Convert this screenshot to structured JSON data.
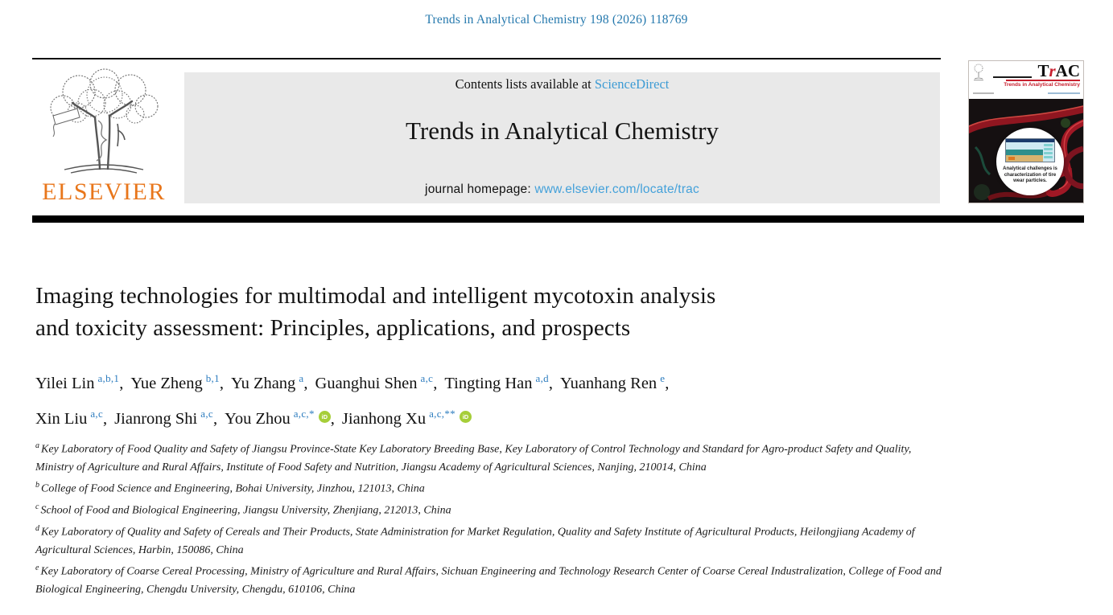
{
  "page": {
    "citation": "Trends in Analytical Chemistry 198 (2026) 118769"
  },
  "header": {
    "contents_prefix": "Contents lists available at ",
    "contents_link": "ScienceDirect",
    "journal_title": "Trends in Analytical Chemistry",
    "homepage_prefix": "journal homepage: ",
    "homepage_link": "www.elsevier.com/locate/trac",
    "publisher_name": "ELSEVIER",
    "cover": {
      "brand_t": "T",
      "brand_r": "r",
      "brand_ac": "AC",
      "subtitle": "Trends in Analytical Chemistry",
      "caption": "Analytical challenges is characterization of tire wear particles."
    }
  },
  "article": {
    "title_line1": "Imaging technologies for multimodal and intelligent mycotoxin analysis",
    "title_line2": "and toxicity assessment: Principles, applications, and prospects",
    "author_lines": [
      [
        {
          "name": "Yilei Lin",
          "sup": "a,b,1",
          "orcid": false,
          "sep": ","
        },
        {
          "name": "Yue Zheng",
          "sup": "b,1",
          "orcid": false,
          "sep": ","
        },
        {
          "name": "Yu Zhang",
          "sup": "a",
          "orcid": false,
          "sep": ","
        },
        {
          "name": "Guanghui Shen",
          "sup": "a,c",
          "orcid": false,
          "sep": ","
        },
        {
          "name": "Tingting Han",
          "sup": "a,d",
          "orcid": false,
          "sep": ","
        },
        {
          "name": "Yuanhang Ren",
          "sup": "e",
          "orcid": false,
          "sep": ","
        }
      ],
      [
        {
          "name": "Xin Liu",
          "sup": "a,c",
          "orcid": false,
          "sep": ","
        },
        {
          "name": "Jianrong Shi",
          "sup": "a,c",
          "orcid": false,
          "sep": ","
        },
        {
          "name": "You Zhou",
          "sup": "a,c,*",
          "orcid": true,
          "sep": ","
        },
        {
          "name": "Jianhong Xu",
          "sup": "a,c,**",
          "orcid": true,
          "sep": ""
        }
      ]
    ],
    "affiliations": [
      {
        "sup": "a",
        "text": "Key Laboratory of Food Quality and Safety of Jiangsu Province-State Key Laboratory Breeding Base, Key Laboratory of Control Technology and Standard for Agro-product Safety and Quality, Ministry of Agriculture and Rural Affairs, Institute of Food Safety and Nutrition, Jiangsu Academy of Agricultural Sciences, Nanjing, 210014, China"
      },
      {
        "sup": "b",
        "text": "College of Food Science and Engineering, Bohai University, Jinzhou, 121013, China"
      },
      {
        "sup": "c",
        "text": "School of Food and Biological Engineering, Jiangsu University, Zhenjiang, 212013, China"
      },
      {
        "sup": "d",
        "text": "Key Laboratory of Quality and Safety of Cereals and Their Products, State Administration for Market Regulation, Quality and Safety Institute of Agricultural Products, Heilongjiang Academy of Agricultural Sciences, Harbin, 150086, China"
      },
      {
        "sup": "e",
        "text": "Key Laboratory of Coarse Cereal Processing, Ministry of Agriculture and Rural Affairs, Sichuan Engineering and Technology Research Center of Coarse Cereal Industralization, College of Food and Biological Engineering, Chengdu University, Chengdu, 610106, China"
      }
    ]
  },
  "icons": {
    "orcid_label": "iD"
  },
  "colors": {
    "citation_blue": "#2478ad",
    "link_blue": "#3c9bd4",
    "homepage_link_blue": "#44a1da",
    "superscript_blue": "#2e7dbf",
    "elsevier_orange": "#e8761b",
    "orcid_green": "#a6ce39",
    "trac_red": "#c8202f",
    "header_band_gray": "#e9e9e9",
    "rule_black": "#000000"
  }
}
